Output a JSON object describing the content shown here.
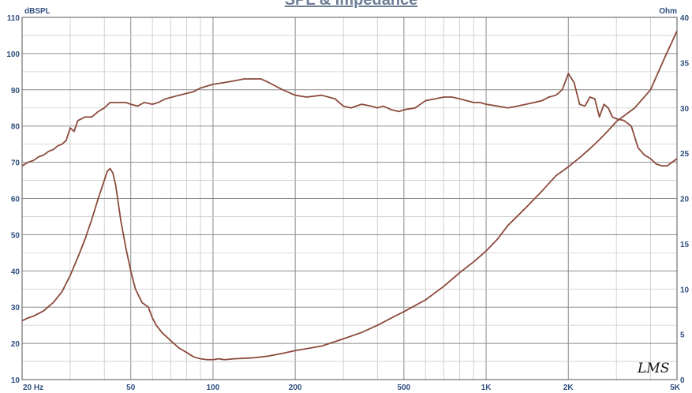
{
  "chart_data": {
    "type": "line",
    "title": "SPL & Impedance",
    "x_scale": "log",
    "xlim": [
      20,
      5000
    ],
    "grid": true,
    "left_axis": {
      "unit": "dBSPL",
      "ylim": [
        10,
        110
      ],
      "ticks": [
        10,
        20,
        30,
        40,
        50,
        60,
        70,
        80,
        90,
        100,
        110
      ]
    },
    "right_axis": {
      "unit": "Ohm",
      "ylim": [
        0,
        40
      ],
      "ticks": [
        0,
        5,
        10,
        15,
        20,
        25,
        30,
        35,
        40
      ]
    },
    "x_tick_labels": [
      {
        "value": 20,
        "label": "20  Hz"
      },
      {
        "value": 50,
        "label": "50"
      },
      {
        "value": 100,
        "label": "100"
      },
      {
        "value": 200,
        "label": "200"
      },
      {
        "value": 500,
        "label": "500"
      },
      {
        "value": 1000,
        "label": "1K"
      },
      {
        "value": 2000,
        "label": "2K"
      },
      {
        "value": 5000,
        "label": "5K"
      }
    ],
    "line_color": "#8b4a3c",
    "logo_text": "LMS",
    "series": [
      {
        "axis": "left",
        "x": [
          20,
          21,
          22,
          23,
          24,
          25,
          26,
          27,
          28,
          29,
          30,
          31,
          32,
          33,
          34,
          35,
          36,
          38,
          40,
          42,
          44,
          46,
          48,
          50,
          53,
          56,
          60,
          63,
          67,
          71,
          75,
          80,
          85,
          90,
          100,
          110,
          120,
          130,
          140,
          150,
          160,
          180,
          200,
          220,
          250,
          280,
          300,
          320,
          350,
          380,
          400,
          420,
          450,
          480,
          500,
          550,
          600,
          650,
          700,
          750,
          800,
          850,
          900,
          950,
          1000,
          1100,
          1200,
          1300,
          1400,
          1500,
          1600,
          1700,
          1800,
          1900,
          2000,
          2100,
          2200,
          2300,
          2400,
          2500,
          2600,
          2700,
          2800,
          2900,
          3000,
          3200,
          3400,
          3600,
          3800,
          4000,
          4200,
          4400,
          4600,
          4800,
          5000
        ],
        "y": [
          69,
          70,
          70.5,
          71.5,
          72,
          73,
          73.5,
          74.5,
          75,
          76,
          79.5,
          78.5,
          81.5,
          82,
          82.5,
          82.5,
          82.5,
          84,
          85,
          86.5,
          86.5,
          86.5,
          86.5,
          86,
          85.5,
          86.5,
          86,
          86.5,
          87.5,
          88,
          88.5,
          89,
          89.5,
          90.5,
          91.5,
          92,
          92.5,
          93,
          93,
          93,
          92,
          90,
          88.5,
          88,
          88.5,
          87.5,
          85.5,
          85,
          86,
          85.5,
          85,
          85.5,
          84.5,
          84,
          84.5,
          85,
          87,
          87.5,
          88,
          88,
          87.5,
          87,
          86.5,
          86.5,
          86,
          85.5,
          85,
          85.5,
          86,
          86.5,
          87,
          88,
          88.5,
          90,
          94.5,
          92,
          86,
          85.5,
          88,
          87.5,
          82.5,
          86,
          85,
          82.5,
          82,
          81.5,
          80,
          74,
          72,
          71,
          69.5,
          69,
          69,
          70,
          71
        ]
      },
      {
        "axis": "right",
        "x": [
          20,
          21,
          22,
          24,
          26,
          28,
          30,
          32,
          34,
          36,
          38,
          40,
          41,
          42,
          43,
          44,
          45,
          46,
          48,
          50,
          52,
          55,
          58,
          60,
          62,
          65,
          70,
          75,
          80,
          85,
          90,
          95,
          100,
          105,
          110,
          120,
          140,
          160,
          180,
          200,
          250,
          300,
          350,
          400,
          450,
          500,
          600,
          700,
          800,
          900,
          1000,
          1100,
          1200,
          1400,
          1600,
          1800,
          2000,
          2200,
          2400,
          2600,
          2800,
          3000,
          3500,
          4000,
          4500,
          5000
        ],
        "y": [
          6.5,
          6.8,
          7,
          7.6,
          8.5,
          9.7,
          11.5,
          13.5,
          15.5,
          17.7,
          20,
          22,
          23,
          23.3,
          22.8,
          21.5,
          19.5,
          17.5,
          14.5,
          12,
          10,
          8.5,
          8,
          6.8,
          6,
          5.2,
          4.3,
          3.5,
          3,
          2.5,
          2.3,
          2.2,
          2.2,
          2.3,
          2.2,
          2.3,
          2.4,
          2.6,
          2.9,
          3.2,
          3.7,
          4.5,
          5.2,
          6,
          6.8,
          7.5,
          8.8,
          10.3,
          11.8,
          13,
          14.2,
          15.5,
          17,
          19,
          20.8,
          22.5,
          23.5,
          24.5,
          25.5,
          26.5,
          27.5,
          28.5,
          30,
          32,
          35.5,
          38.5
        ]
      }
    ]
  }
}
